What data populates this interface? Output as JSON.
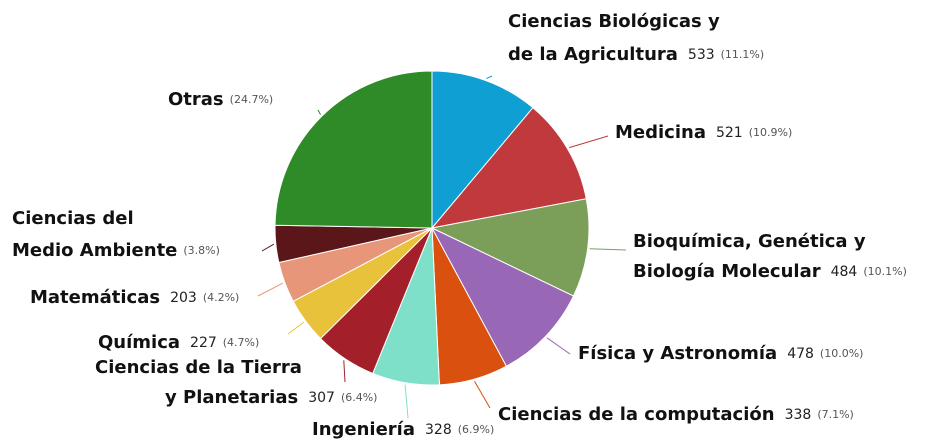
{
  "chart_data": {
    "type": "pie",
    "categories": [
      [
        "Ciencias Biológicas y",
        "de la Agricultura"
      ],
      [
        "Medicina"
      ],
      [
        "Bioquímica, Genética y",
        "Biología Molecular"
      ],
      [
        "Física y Astronomía"
      ],
      [
        "Ciencias de la computación"
      ],
      [
        "Ingeniería"
      ],
      [
        "Ciencias de la Tierra",
        "y Planetarias"
      ],
      [
        "Química"
      ],
      [
        "Matemáticas"
      ],
      [
        "Ciencias del",
        "Medio Ambiente"
      ],
      [
        "Otras"
      ]
    ],
    "counts": [
      533,
      521,
      484,
      478,
      338,
      328,
      307,
      227,
      203,
      null,
      null
    ],
    "values": [
      11.1,
      10.9,
      10.1,
      10.0,
      7.1,
      6.9,
      6.4,
      4.7,
      4.2,
      3.8,
      24.7
    ],
    "value_labels": [
      "(11.1%)",
      "(10.9%)",
      "(10.1%)",
      "(10.0%)",
      "(7.1%)",
      "(6.9%)",
      "(6.4%)",
      "(4.7%)",
      "(4.2%)",
      "(3.8%)",
      "(24.7%)"
    ],
    "colors": [
      "#0f9fd3",
      "#c0393c",
      "#7b9f58",
      "#9867b5",
      "#d9500f",
      "#7ee0c9",
      "#a3202b",
      "#e9c23b",
      "#e8967a",
      "#5a1619",
      "#2f8b27"
    ]
  }
}
